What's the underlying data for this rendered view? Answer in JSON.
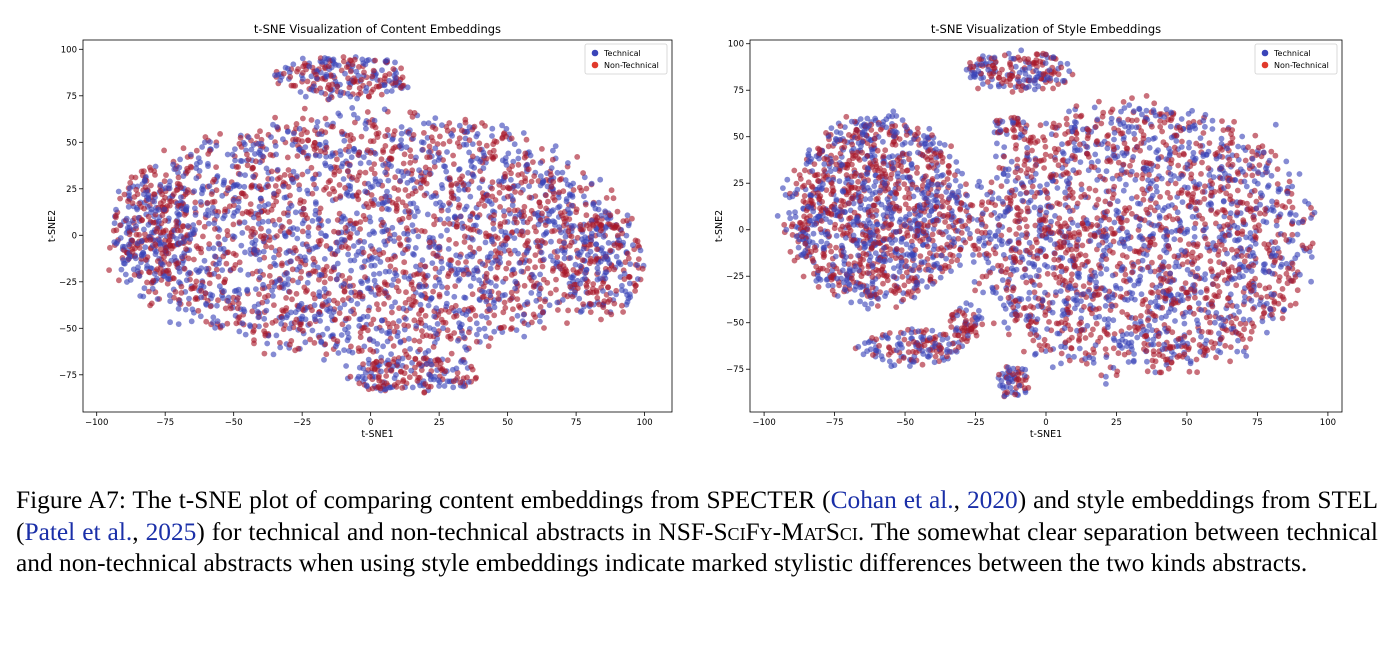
{
  "chart_data": [
    {
      "type": "scatter",
      "title": "t-SNE Visualization of Content Embeddings",
      "xlabel": "t-SNE1",
      "ylabel": "t-SNE2",
      "xlim": [
        -105,
        110
      ],
      "ylim": [
        -95,
        105
      ],
      "xticks": [
        -100,
        -75,
        -50,
        -25,
        0,
        25,
        50,
        75,
        100
      ],
      "yticks": [
        -75,
        -50,
        -25,
        0,
        25,
        50,
        75,
        100
      ],
      "grid": false,
      "legend": "top-right",
      "series": [
        {
          "name": "Technical",
          "color": "#3a44b8",
          "point_color": "#3a44b8"
        },
        {
          "name": "Non-Technical",
          "color": "#e03a2c",
          "point_color": "#a8182a"
        }
      ],
      "clusters": [
        {
          "x": 0,
          "y": 0,
          "rx": 90,
          "ry": 65,
          "n": 2600
        },
        {
          "x": -10,
          "y": 85,
          "rx": 25,
          "ry": 12,
          "n": 220
        },
        {
          "x": 15,
          "y": -75,
          "rx": 25,
          "ry": 10,
          "n": 180
        },
        {
          "x": -80,
          "y": 0,
          "rx": 15,
          "ry": 35,
          "n": 260
        },
        {
          "x": 85,
          "y": -15,
          "rx": 15,
          "ry": 30,
          "n": 220
        }
      ]
    },
    {
      "type": "scatter",
      "title": "t-SNE Visualization of Style Embeddings",
      "xlabel": "t-SNE1",
      "ylabel": "t-SNE2",
      "xlim": [
        -105,
        105
      ],
      "ylim": [
        -98,
        102
      ],
      "xticks": [
        -100,
        -75,
        -50,
        -25,
        0,
        25,
        50,
        75,
        100
      ],
      "yticks": [
        -75,
        -50,
        -25,
        0,
        25,
        50,
        75,
        100
      ],
      "grid": false,
      "legend": "top-right",
      "series": [
        {
          "name": "Technical",
          "color": "#3a44b8",
          "point_color": "#3a44b8"
        },
        {
          "name": "Non-Technical",
          "color": "#e03a2c",
          "point_color": "#a8182a"
        }
      ],
      "clusters": [
        {
          "x": -60,
          "y": 10,
          "rx": 32,
          "ry": 50,
          "n": 1300
        },
        {
          "x": 33,
          "y": -5,
          "rx": 60,
          "ry": 72,
          "n": 2200
        },
        {
          "x": -10,
          "y": 85,
          "rx": 20,
          "ry": 11,
          "n": 180
        },
        {
          "x": -48,
          "y": -63,
          "rx": 18,
          "ry": 10,
          "n": 140
        },
        {
          "x": -28,
          "y": -50,
          "rx": 6,
          "ry": 10,
          "n": 60
        },
        {
          "x": -12,
          "y": -82,
          "rx": 6,
          "ry": 9,
          "n": 60
        },
        {
          "x": -13,
          "y": 55,
          "rx": 6,
          "ry": 6,
          "n": 40
        }
      ]
    }
  ],
  "caption": {
    "label": "Figure A7:",
    "text_1": "The t-SNE plot of comparing content embeddings from SPECTER (",
    "cite_1_authors": "Cohan et al.",
    "cite_1_sep": ", ",
    "cite_1_year": "2020",
    "text_2": ") and style embeddings from STEL (",
    "cite_2_authors": "Patel et al.",
    "cite_2_sep": ", ",
    "cite_2_year": "2025",
    "text_3": ") for technical and non-technical abstracts in ",
    "dataset": "NSF-SciFy-MatSci",
    "text_4": ". The somewhat clear separation between technical and non-technical abstracts when using style embeddings indicate marked stylistic differences between the two kinds abstracts."
  }
}
